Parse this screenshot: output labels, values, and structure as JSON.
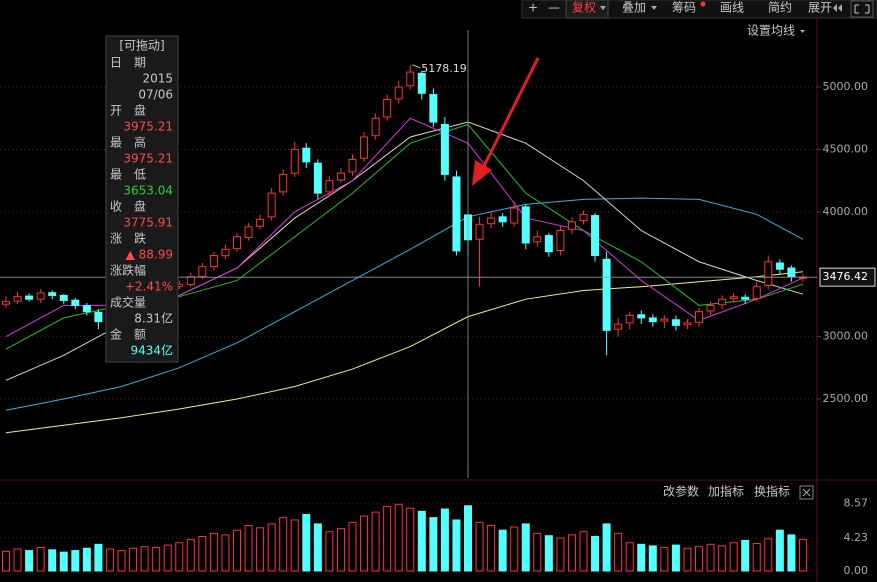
{
  "toolbar": [
    "+",
    "—",
    "复权",
    "叠加",
    "筹码",
    "画线",
    "简约",
    "展开"
  ],
  "ma_setting": "设置均线",
  "info_panel": {
    "title": "[可拖动]",
    "date_label": "日　期",
    "year": "2015",
    "date": "07/06",
    "open_label": "开　盘",
    "high_label": "最　高",
    "low_label": "最　低",
    "close_label": "收　盘",
    "change_label": "涨　跌",
    "change": "▲ 88.99",
    "pct_label": "涨跌幅",
    "pct": "+2.41%",
    "vol_label": "成交量",
    "vol": "8.31亿",
    "amount_label": "金　额",
    "amount": "9434亿"
  },
  "volume_panel": {
    "buttons": [
      "改参数",
      "加指标",
      "换指标"
    ]
  },
  "chart_data": {
    "type": "candlestick",
    "open": [
      3260,
      3285,
      3325,
      3300,
      3352,
      3330,
      3292,
      3248,
      3195,
      3125,
      3218,
      3262,
      3298,
      3322,
      3358,
      3402,
      3418,
      3482,
      3562,
      3648,
      3705,
      3795,
      3885,
      3960,
      4160,
      4310,
      4510,
      4390,
      4160,
      4255,
      4320,
      4430,
      4610,
      4760,
      4905,
      5010,
      5110,
      4940,
      4700,
      4280,
      3975.21,
      3780,
      3905,
      3960,
      3910,
      4040,
      3760,
      3810,
      3690,
      3860,
      3930,
      3970,
      3620,
      3060,
      3110,
      3175,
      3150,
      3125,
      3135,
      3095,
      3115,
      3205,
      3255,
      3305,
      3315,
      3305,
      3410,
      3590,
      3550,
      3470
    ],
    "high": [
      3320,
      3360,
      3345,
      3380,
      3370,
      3340,
      3310,
      3270,
      3220,
      3250,
      3290,
      3330,
      3350,
      3390,
      3430,
      3450,
      3510,
      3590,
      3680,
      3740,
      3830,
      3910,
      3980,
      4190,
      4340,
      4560,
      4550,
      4420,
      4290,
      4350,
      4460,
      4640,
      4790,
      4940,
      5050,
      5178.19,
      5130,
      4990,
      4760,
      4330,
      3975.21,
      3960,
      4010,
      3990,
      4080,
      4060,
      3850,
      3830,
      3890,
      3960,
      4010,
      3990,
      3680,
      3150,
      3200,
      3210,
      3180,
      3170,
      3170,
      3140,
      3230,
      3280,
      3330,
      3350,
      3340,
      3440,
      3650,
      3620,
      3570,
      3500
    ],
    "low": [
      3230,
      3260,
      3280,
      3270,
      3300,
      3260,
      3220,
      3170,
      3060,
      3100,
      3190,
      3240,
      3270,
      3300,
      3330,
      3380,
      3400,
      3460,
      3530,
      3620,
      3680,
      3770,
      3860,
      3930,
      4130,
      4280,
      4350,
      4100,
      4120,
      4230,
      4290,
      4400,
      4580,
      4730,
      4870,
      4980,
      4900,
      4680,
      4250,
      3650,
      3653.04,
      3400,
      3870,
      3880,
      3880,
      3700,
      3720,
      3640,
      3650,
      3820,
      3900,
      3600,
      2850,
      3000,
      3060,
      3100,
      3080,
      3070,
      3050,
      3060,
      3080,
      3180,
      3220,
      3270,
      3260,
      3280,
      3380,
      3500,
      3440,
      3440
    ],
    "close": [
      3280,
      3320,
      3300,
      3350,
      3330,
      3290,
      3250,
      3200,
      3120,
      3220,
      3260,
      3300,
      3320,
      3360,
      3400,
      3420,
      3480,
      3560,
      3650,
      3700,
      3800,
      3880,
      3940,
      4150,
      4300,
      4500,
      4400,
      4150,
      4250,
      4310,
      4420,
      4600,
      4750,
      4900,
      5000,
      5120,
      4950,
      4720,
      4300,
      3686.92,
      3775.91,
      3900,
      3950,
      3920,
      4030,
      3750,
      3800,
      3680,
      3850,
      3920,
      3980,
      3650,
      3050,
      3100,
      3170,
      3150,
      3120,
      3140,
      3090,
      3110,
      3200,
      3250,
      3300,
      3320,
      3300,
      3400,
      3600,
      3540,
      3480,
      3476.42
    ],
    "volume": [
      2.5,
      2.8,
      2.6,
      3.0,
      2.7,
      2.4,
      2.6,
      2.9,
      3.4,
      2.8,
      2.6,
      2.9,
      3.1,
      3.0,
      3.3,
      3.6,
      4.0,
      4.4,
      4.8,
      4.6,
      5.2,
      5.8,
      5.5,
      6.0,
      6.8,
      6.5,
      7.2,
      6.0,
      5.0,
      5.4,
      6.2,
      7.0,
      7.5,
      8.2,
      8.5,
      8.0,
      7.6,
      6.8,
      7.9,
      6.5,
      8.31,
      6.2,
      5.8,
      5.2,
      5.6,
      6.0,
      4.8,
      4.5,
      4.2,
      4.6,
      5.0,
      4.4,
      6.0,
      4.8,
      3.6,
      3.4,
      3.2,
      3.0,
      3.3,
      2.9,
      3.1,
      3.4,
      3.2,
      3.6,
      3.9,
      3.5,
      4.1,
      5.2,
      4.6,
      4.0
    ],
    "up_color": "#ff3232",
    "down_color": "#54ffff",
    "ma_x": [
      0,
      5,
      10,
      15,
      20,
      25,
      30,
      35,
      40,
      45,
      50,
      55,
      60,
      65,
      69
    ],
    "series": [
      {
        "color": "#f0f07a",
        "values": [
          2230,
          2290,
          2350,
          2420,
          2500,
          2600,
          2740,
          2920,
          3160,
          3300,
          3370,
          3400,
          3440,
          3480,
          3520
        ]
      },
      {
        "color": "#2ab4e8",
        "values": [
          2410,
          2500,
          2600,
          2750,
          2950,
          3200,
          3450,
          3700,
          3960,
          4060,
          4100,
          4110,
          4100,
          3980,
          3780
        ]
      },
      {
        "color": "#d8d8c8",
        "values": [
          2650,
          2850,
          3100,
          3330,
          3550,
          3950,
          4250,
          4600,
          4720,
          4550,
          4250,
          3850,
          3600,
          3450,
          3340
        ]
      },
      {
        "color": "#22c02a",
        "values": [
          2900,
          3150,
          3250,
          3320,
          3450,
          3800,
          4150,
          4550,
          4700,
          4150,
          3850,
          3600,
          3250,
          3300,
          3420
        ]
      },
      {
        "color": "#e030e0",
        "values": [
          3000,
          3250,
          3250,
          3330,
          3550,
          4000,
          4250,
          4750,
          4550,
          3950,
          3850,
          3450,
          3130,
          3300,
          3470
        ]
      }
    ],
    "ylim": [
      1867,
      5377
    ],
    "yticks": [
      {
        "value": 2500,
        "label": "2500.00"
      },
      {
        "value": 3000,
        "label": "3000.00"
      },
      {
        "value": 4000,
        "label": "4000.00"
      },
      {
        "value": 4500,
        "label": "4500.00"
      },
      {
        "value": 5000,
        "label": "5000.00"
      }
    ],
    "volume_ylim": [
      0,
      9.3
    ],
    "volume_yticks": [
      {
        "value": 0,
        "label": "0.00"
      },
      4.23,
      8.57
    ],
    "grid": true
  }
}
